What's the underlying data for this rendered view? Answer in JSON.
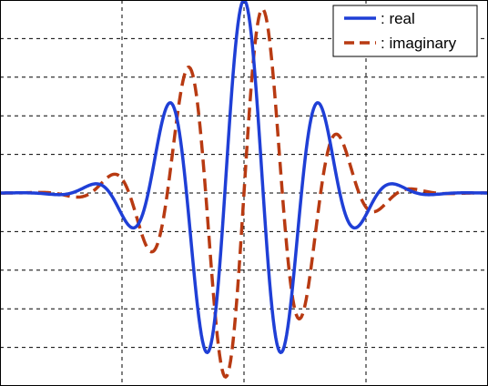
{
  "chart_data": {
    "type": "line",
    "title": "",
    "xlabel": "",
    "ylabel": "",
    "xlim": [
      -4,
      4
    ],
    "ylim": [
      -1,
      1
    ],
    "grid": true,
    "legend_position": "top-right",
    "x_gridlines": [
      -2,
      0,
      2
    ],
    "y_gridlines": [
      -0.8,
      -0.6,
      -0.4,
      -0.2,
      0,
      0.2,
      0.4,
      0.6,
      0.8
    ],
    "series": [
      {
        "name": ": real",
        "color": "#1f3fd6",
        "line_style": "solid",
        "formula": "exp(-x^2/2) * cos(5x)",
        "sample_step": 0.02
      },
      {
        "name": ": imaginary",
        "color": "#b83a12",
        "line_style": "dashed",
        "formula": "exp(-x^2/2) * sin(5x)",
        "sample_step": 0.02
      }
    ]
  },
  "legend": {
    "real_label": ": real",
    "imag_label": ": imaginary"
  }
}
